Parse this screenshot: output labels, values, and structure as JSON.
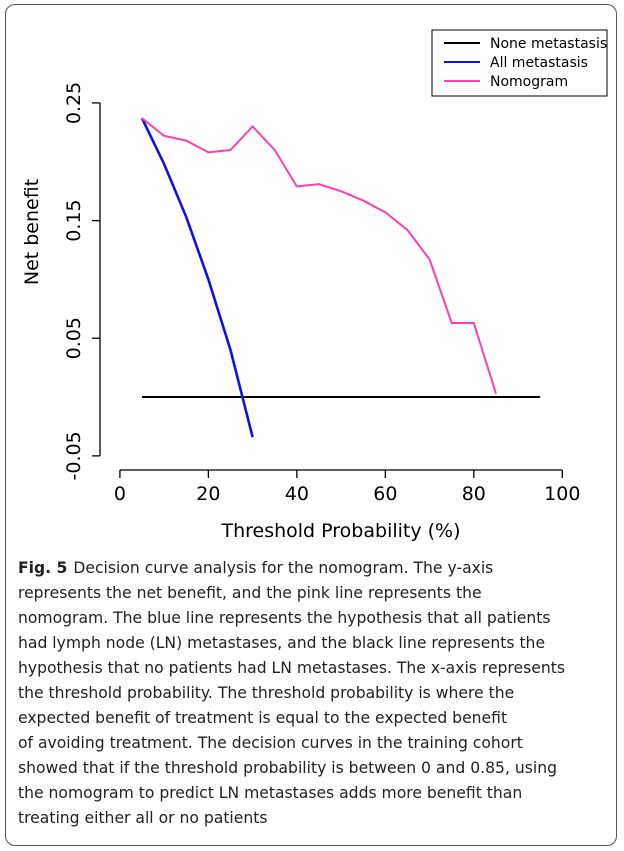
{
  "chart_data": {
    "type": "line",
    "xlabel": "Threshold Probability (%)",
    "ylabel": "Net benefit",
    "x": [
      5,
      10,
      15,
      20,
      25,
      30,
      35,
      40,
      45,
      50,
      55,
      60,
      65,
      70,
      75,
      80,
      85,
      90,
      95
    ],
    "series": [
      {
        "name": "None metastasis",
        "color": "#000000",
        "values": [
          0,
          0,
          0,
          0,
          0,
          0,
          0,
          0,
          0,
          0,
          0,
          0,
          0,
          0,
          0,
          0,
          0,
          0,
          0
        ]
      },
      {
        "name": "All metastasis",
        "color": "#1010e0",
        "values": [
          0.237,
          0.198,
          0.153,
          0.1,
          0.04,
          -0.034,
          null,
          null,
          null,
          null,
          null,
          null,
          null,
          null,
          null,
          null,
          null,
          null,
          null
        ]
      },
      {
        "name": "Nomogram",
        "color": "#ff3fb0",
        "values": [
          0.237,
          0.222,
          0.218,
          0.208,
          0.21,
          0.23,
          0.21,
          0.179,
          0.181,
          0.175,
          0.167,
          0.157,
          0.142,
          0.117,
          0.063,
          0.063,
          0.003,
          null,
          null
        ]
      }
    ],
    "xlim": [
      -4.5,
      104
    ],
    "ylim": [
      -0.062,
      0.3035
    ],
    "xticks": [
      0,
      20,
      40,
      60,
      80,
      100
    ],
    "yticks": [
      -0.05,
      0.05,
      0.15,
      0.25
    ],
    "legend": "topright"
  },
  "caption": {
    "label": "Fig. 5",
    "lines": [
      "Decision curve analysis for the nomogram. The y-axis",
      "represents the net benefit, and the pink line represents the",
      "nomogram. The blue line represents the hypothesis that all patients",
      "had lymph node (LN) metastases, and the black line represents the",
      "hypothesis that no patients had LN metastases. The x-axis represents",
      "the threshold probability. The threshold probability is where the",
      "expected benefit of treatment is equal to the expected benefit",
      "of avoiding treatment. The decision curves in the training cohort",
      "showed that if the threshold probability is between 0 and 0.85, using",
      "the nomogram to predict LN metastases adds more benefit than",
      "treating either all or no patients"
    ]
  }
}
